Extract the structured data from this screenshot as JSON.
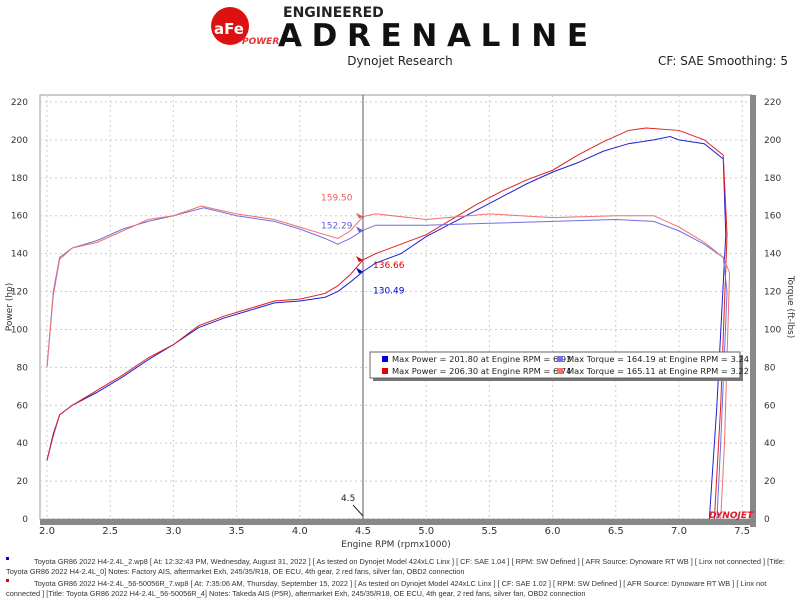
{
  "header": {
    "logo_text": "aFe POWER ENGINEERED ADRENALINE",
    "subtitle": "Dynojet Research",
    "cf": "CF: SAE Smoothing: 5"
  },
  "chart_data": {
    "type": "line",
    "xlabel": "Engine RPM (rpmx1000)",
    "ylabel": "Power (hp)",
    "y2label": "Torque (ft-lbs)",
    "xlim": [
      2.0,
      7.5
    ],
    "ylim": [
      0,
      220
    ],
    "y2lim": [
      0,
      220
    ],
    "xticks": [
      "2.0",
      "2.5",
      "3.0",
      "3.5",
      "4.0",
      "4.5",
      "5.0",
      "5.5",
      "6.0",
      "6.5",
      "7.0",
      "7.5"
    ],
    "yticks": [
      "0",
      "20",
      "40",
      "60",
      "80",
      "100",
      "120",
      "140",
      "160",
      "180",
      "200",
      "220"
    ],
    "grid": true,
    "cursor": {
      "x": 4.5,
      "label": "4.5"
    },
    "cursor_values": [
      {
        "label": "159.50",
        "y": 159.5,
        "color": "#e86060"
      },
      {
        "label": "152.29",
        "y": 152.29,
        "color": "#6060e0"
      },
      {
        "label": "136.66",
        "y": 136.66,
        "color": "#e00000"
      },
      {
        "label": "130.49",
        "y": 130.49,
        "color": "#0000d0"
      }
    ],
    "series": [
      {
        "color": "#2020d0",
        "kind": "power",
        "x": [
          2.0,
          2.05,
          2.1,
          2.2,
          2.4,
          2.6,
          2.8,
          3.0,
          3.2,
          3.4,
          3.6,
          3.8,
          4.0,
          4.2,
          4.3,
          4.4,
          4.5,
          4.6,
          4.8,
          5.0,
          5.2,
          5.4,
          5.6,
          5.8,
          6.0,
          6.2,
          6.4,
          6.6,
          6.8,
          6.93,
          7.0,
          7.2,
          7.35,
          7.37,
          7.3,
          7.24
        ],
        "y": [
          31,
          45,
          55,
          60,
          67,
          75,
          84,
          92,
          101,
          106,
          110,
          114,
          115,
          117,
          120,
          125,
          130.5,
          135,
          140,
          149,
          156,
          163,
          170,
          177,
          183,
          188,
          194,
          198,
          200,
          201.8,
          200,
          198,
          190,
          150,
          60,
          0
        ]
      },
      {
        "color": "#e02020",
        "kind": "power",
        "x": [
          2.0,
          2.05,
          2.1,
          2.2,
          2.4,
          2.6,
          2.8,
          3.0,
          3.2,
          3.4,
          3.6,
          3.8,
          4.0,
          4.2,
          4.3,
          4.4,
          4.5,
          4.6,
          4.8,
          5.0,
          5.2,
          5.4,
          5.6,
          5.8,
          6.0,
          6.2,
          6.4,
          6.6,
          6.74,
          7.0,
          7.2,
          7.35,
          7.38,
          7.33,
          7.28
        ],
        "y": [
          31,
          44,
          55,
          60,
          68,
          76,
          85,
          92,
          102,
          107,
          111,
          115,
          116,
          119,
          123,
          129,
          136.7,
          140,
          145,
          150,
          158,
          166,
          173,
          179,
          184,
          192,
          199,
          205,
          206.3,
          205,
          200,
          192,
          150,
          60,
          0
        ]
      },
      {
        "color": "#7070e0",
        "kind": "torque",
        "x": [
          2.0,
          2.05,
          2.1,
          2.2,
          2.4,
          2.6,
          2.8,
          3.0,
          3.24,
          3.5,
          3.8,
          4.0,
          4.2,
          4.3,
          4.4,
          4.5,
          4.6,
          5.0,
          5.5,
          6.0,
          6.5,
          6.8,
          7.0,
          7.2,
          7.35,
          7.38,
          7.33,
          7.3
        ],
        "y": [
          80,
          120,
          138,
          143,
          147,
          153,
          157,
          160,
          164.2,
          160,
          157,
          153,
          148,
          145,
          148,
          152.3,
          155,
          155,
          156,
          157,
          158,
          157,
          152,
          145,
          138,
          120,
          40,
          0
        ]
      },
      {
        "color": "#f07070",
        "kind": "torque",
        "x": [
          2.0,
          2.05,
          2.1,
          2.2,
          2.4,
          2.6,
          2.8,
          3.0,
          3.22,
          3.5,
          3.8,
          4.0,
          4.2,
          4.3,
          4.4,
          4.5,
          4.6,
          5.0,
          5.5,
          6.0,
          6.5,
          6.8,
          7.0,
          7.2,
          7.35,
          7.4,
          7.36,
          7.33
        ],
        "y": [
          80,
          118,
          137,
          143,
          146,
          152,
          158,
          160,
          165.1,
          161,
          158,
          154,
          150,
          148,
          152,
          159.5,
          161,
          158,
          161,
          159,
          160,
          160,
          154,
          146,
          138,
          130,
          40,
          0
        ]
      }
    ]
  },
  "legend": [
    {
      "color": "#0000e0",
      "text": "Max Power = 201.80 at Engine RPM = 6.93"
    },
    {
      "color": "#7070f0",
      "text": "Max Torque = 164.19 at Engine RPM = 3.24"
    },
    {
      "color": "#e00000",
      "text": "Max Power = 206.30 at Engine RPM = 6.74"
    },
    {
      "color": "#f07070",
      "text": "Max Torque = 165.11 at Engine RPM = 3.22"
    }
  ],
  "watermark": "DYNOJET",
  "footer": [
    {
      "color": "#0000e0",
      "line1": "Toyota GR86 2022 H4-2.4L_2.wp8 [ At: 12:32:43 PM, Wednesday, August 31, 2022 ] [ As tested on Dynojet Model 424xLC Linx ] [ CF: SAE 1.04 ] [ RPM: SW Defined ] [ AFR Source: Dynoware RT WB ] [ Linx not connected ] [Title:",
      "line2": "Toyota GR86 2022 H4-2.4L_0]  Notes: Factory AIS, aftermarket Exh, 245/35/R18, OE ECU, 4th gear, 2 red fans, silver fan, OBD2 connection"
    },
    {
      "color": "#e00000",
      "line1": "Toyota GR86 2022 H4-2.4L_56-50056R_7.wp8 [ At: 7:35:06 AM, Thursday, September 15, 2022 ] [ As tested on Dynojet Model 424xLC Linx ] [ CF: SAE 1.02 ] [ RPM: SW Defined ] [ AFR Source: Dynoware RT WB ] [ Linx not",
      "line2": "connected ] [Title: Toyota GR86 2022 H4-2.4L_56-50056R_4]  Notes: Takeda AIS (P5R), aftermarket Exh, 245/35/R18, OE ECU, 4th gear, 2 red fans, silver fan, OBD2 connection"
    }
  ]
}
